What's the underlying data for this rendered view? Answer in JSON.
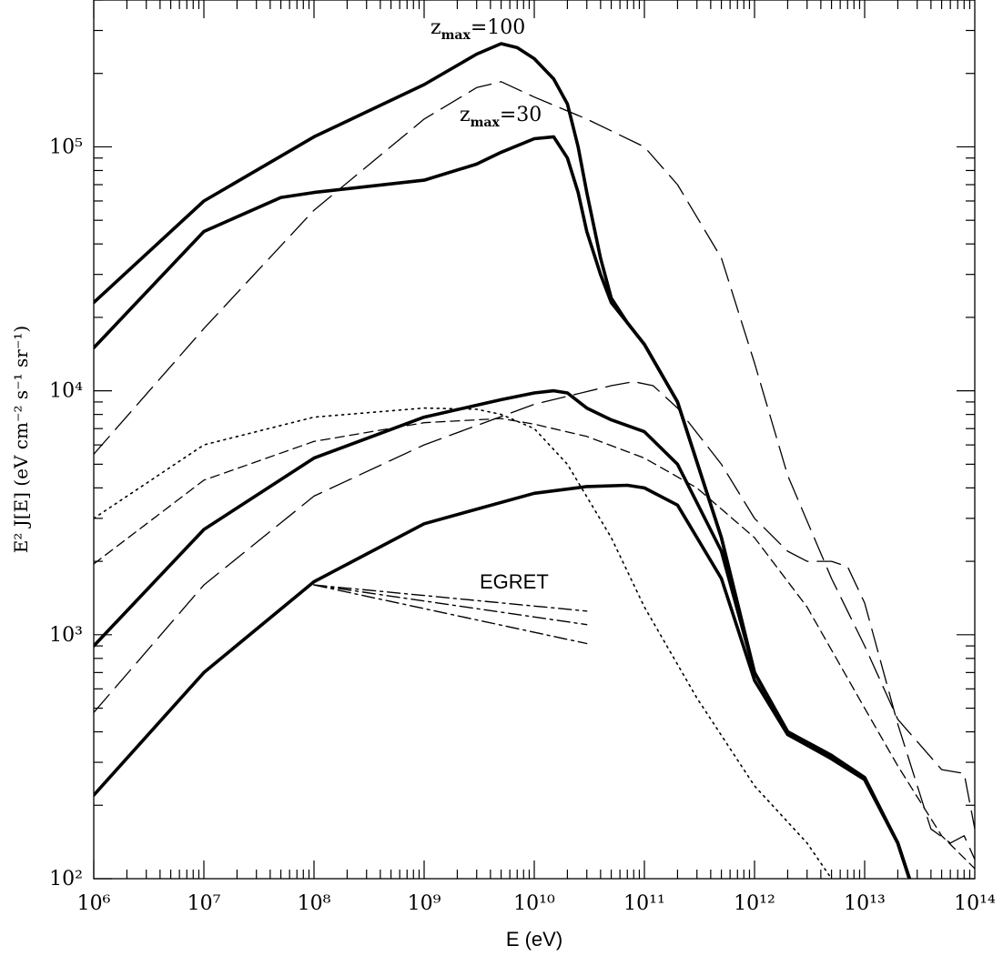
{
  "chart_data": {
    "type": "line",
    "xlabel": "E (eV)",
    "ylabel": "E² J[E] (eV cm⁻² s⁻¹ sr⁻¹)",
    "xscale": "log",
    "yscale": "log",
    "xlim": [
      1000000.0,
      100000000000000.0
    ],
    "ylim": [
      100,
      400000
    ],
    "x_tick_labels": [
      "10⁶",
      "10⁷",
      "10⁸",
      "10⁹",
      "10¹⁰",
      "10¹¹",
      "10¹²",
      "10¹³",
      "10¹⁴"
    ],
    "y_tick_labels": [
      "10²",
      "10³",
      "10⁴",
      "10⁵"
    ],
    "annotations": [
      {
        "text": "z",
        "sub": "max",
        "suffix": "=100"
      },
      {
        "text": "z",
        "sub": "max",
        "suffix": "=30"
      },
      {
        "text": "EGRET"
      }
    ],
    "series": [
      {
        "style": "thick",
        "points": [
          [
            1000000.0,
            23000
          ],
          [
            10000000.0,
            60000
          ],
          [
            100000000.0,
            110000
          ],
          [
            1000000000.0,
            180000
          ],
          [
            3000000000.0,
            240000
          ],
          [
            5000000000.0,
            265000
          ],
          [
            7000000000.0,
            255000
          ],
          [
            10000000000.0,
            230000
          ],
          [
            15000000000.0,
            190000
          ],
          [
            20000000000.0,
            150000
          ],
          [
            25000000000.0,
            100000
          ],
          [
            30000000000.0,
            65000
          ],
          [
            40000000000.0,
            35000
          ],
          [
            50000000000.0,
            24000
          ],
          [
            70000000000.0,
            19000
          ],
          [
            100000000000.0,
            15500
          ],
          [
            200000000000.0,
            9000
          ],
          [
            500000000000.0,
            2500
          ],
          [
            1000000000000.0,
            700
          ],
          [
            2000000000000.0,
            400
          ],
          [
            5000000000000.0,
            320
          ],
          [
            10000000000000.0,
            260
          ],
          [
            20000000000000.0,
            140
          ],
          [
            30000000000000.0,
            80
          ]
        ]
      },
      {
        "style": "thick",
        "points": [
          [
            1000000.0,
            15000
          ],
          [
            10000000.0,
            45000
          ],
          [
            50000000.0,
            62000
          ],
          [
            100000000.0,
            65000
          ],
          [
            1000000000.0,
            73000
          ],
          [
            3000000000.0,
            85000
          ],
          [
            5000000000.0,
            95000
          ],
          [
            10000000000.0,
            108000
          ],
          [
            15000000000.0,
            110000
          ],
          [
            20000000000.0,
            90000
          ],
          [
            25000000000.0,
            65000
          ],
          [
            30000000000.0,
            45000
          ],
          [
            40000000000.0,
            30000
          ],
          [
            50000000000.0,
            23000
          ],
          [
            70000000000.0,
            19000
          ],
          [
            100000000000.0,
            15500
          ],
          [
            200000000000.0,
            9000
          ],
          [
            500000000000.0,
            2500
          ],
          [
            1000000000000.0,
            700
          ],
          [
            2000000000000.0,
            400
          ],
          [
            5000000000000.0,
            320
          ],
          [
            10000000000000.0,
            255
          ],
          [
            20000000000000.0,
            140
          ],
          [
            30000000000000.0,
            80
          ]
        ]
      },
      {
        "style": "thick",
        "points": [
          [
            1000000.0,
            900
          ],
          [
            10000000.0,
            2700
          ],
          [
            100000000.0,
            5300
          ],
          [
            1000000000.0,
            7800
          ],
          [
            5000000000.0,
            9200
          ],
          [
            10000000000.0,
            9800
          ],
          [
            15000000000.0,
            10000
          ],
          [
            20000000000.0,
            9800
          ],
          [
            30000000000.0,
            8500
          ],
          [
            50000000000.0,
            7600
          ],
          [
            100000000000.0,
            6800
          ],
          [
            200000000000.0,
            5000
          ],
          [
            500000000000.0,
            2200
          ],
          [
            1000000000000.0,
            700
          ],
          [
            2000000000000.0,
            400
          ],
          [
            5000000000000.0,
            310
          ],
          [
            10000000000000.0,
            255
          ],
          [
            20000000000000.0,
            140
          ],
          [
            30000000000000.0,
            80
          ]
        ]
      },
      {
        "style": "thick",
        "points": [
          [
            1000000.0,
            220
          ],
          [
            10000000.0,
            700
          ],
          [
            100000000.0,
            1650
          ],
          [
            1000000000.0,
            2850
          ],
          [
            10000000000.0,
            3800
          ],
          [
            30000000000.0,
            4050
          ],
          [
            70000000000.0,
            4100
          ],
          [
            100000000000.0,
            4000
          ],
          [
            200000000000.0,
            3400
          ],
          [
            500000000000.0,
            1700
          ],
          [
            1000000000000.0,
            650
          ],
          [
            2000000000000.0,
            390
          ],
          [
            5000000000000.0,
            310
          ],
          [
            10000000000000.0,
            255
          ],
          [
            20000000000000.0,
            140
          ],
          [
            30000000000000.0,
            80
          ]
        ]
      },
      {
        "style": "longdash",
        "points": [
          [
            1000000.0,
            5500
          ],
          [
            10000000.0,
            18000
          ],
          [
            100000000.0,
            55000
          ],
          [
            1000000000.0,
            130000
          ],
          [
            3000000000.0,
            175000
          ],
          [
            5000000000.0,
            185000
          ],
          [
            10000000000.0,
            160000
          ],
          [
            30000000000.0,
            130000
          ],
          [
            100000000000.0,
            100000
          ],
          [
            200000000000.0,
            70000
          ],
          [
            500000000000.0,
            35000
          ],
          [
            1000000000000.0,
            13000
          ],
          [
            2000000000000.0,
            4500
          ],
          [
            5000000000000.0,
            1700
          ],
          [
            10000000000000.0,
            900
          ],
          [
            20000000000000.0,
            450
          ],
          [
            50000000000000.0,
            280
          ],
          [
            80000000000000.0,
            270
          ],
          [
            100000000000000.0,
            160
          ]
        ]
      },
      {
        "style": "longdash",
        "points": [
          [
            1000000.0,
            480
          ],
          [
            10000000.0,
            1600
          ],
          [
            100000000.0,
            3700
          ],
          [
            1000000000.0,
            6000
          ],
          [
            10000000000.0,
            8800
          ],
          [
            50000000000.0,
            10500
          ],
          [
            80000000000.0,
            10900
          ],
          [
            120000000000.0,
            10500
          ],
          [
            200000000000.0,
            8500
          ],
          [
            500000000000.0,
            5000
          ],
          [
            1000000000000.0,
            3000
          ],
          [
            2000000000000.0,
            2200
          ],
          [
            3000000000000.0,
            2000
          ],
          [
            5000000000000.0,
            2000
          ],
          [
            7000000000000.0,
            1900
          ],
          [
            10000000000000.0,
            1350
          ],
          [
            20000000000000.0,
            430
          ],
          [
            40000000000000.0,
            160
          ],
          [
            60000000000000.0,
            140
          ],
          [
            80000000000000.0,
            150
          ],
          [
            100000000000000.0,
            120
          ]
        ]
      },
      {
        "style": "shortdash",
        "points": [
          [
            1000000.0,
            1950
          ],
          [
            10000000.0,
            4300
          ],
          [
            100000000.0,
            6200
          ],
          [
            1000000000.0,
            7400
          ],
          [
            5000000000.0,
            7700
          ],
          [
            10000000000.0,
            7300
          ],
          [
            30000000000.0,
            6500
          ],
          [
            100000000000.0,
            5300
          ],
          [
            300000000000.0,
            4000
          ],
          [
            1000000000000.0,
            2500
          ],
          [
            3000000000000.0,
            1300
          ],
          [
            10000000000000.0,
            500
          ],
          [
            20000000000000.0,
            290
          ],
          [
            50000000000000.0,
            150
          ],
          [
            100000000000000.0,
            110
          ]
        ]
      },
      {
        "style": "dotted",
        "points": [
          [
            1000000.0,
            3000
          ],
          [
            10000000.0,
            6000
          ],
          [
            100000000.0,
            7800
          ],
          [
            1000000000.0,
            8500
          ],
          [
            3000000000.0,
            8400
          ],
          [
            5000000000.0,
            8000
          ],
          [
            10000000000.0,
            7000
          ],
          [
            20000000000.0,
            5000
          ],
          [
            50000000000.0,
            2500
          ],
          [
            100000000000.0,
            1300
          ],
          [
            300000000000.0,
            550
          ],
          [
            1000000000000.0,
            240
          ],
          [
            3000000000000.0,
            140
          ],
          [
            5000000000000.0,
            100
          ]
        ]
      },
      {
        "style": "dashdot",
        "points": [
          [
            100000000.0,
            1600
          ],
          [
            30000000000.0,
            1250
          ]
        ]
      },
      {
        "style": "dashdot",
        "points": [
          [
            100000000.0,
            1600
          ],
          [
            30000000000.0,
            1100
          ]
        ]
      },
      {
        "style": "dashdot",
        "points": [
          [
            100000000.0,
            1600
          ],
          [
            30000000000.0,
            920
          ]
        ]
      }
    ]
  }
}
